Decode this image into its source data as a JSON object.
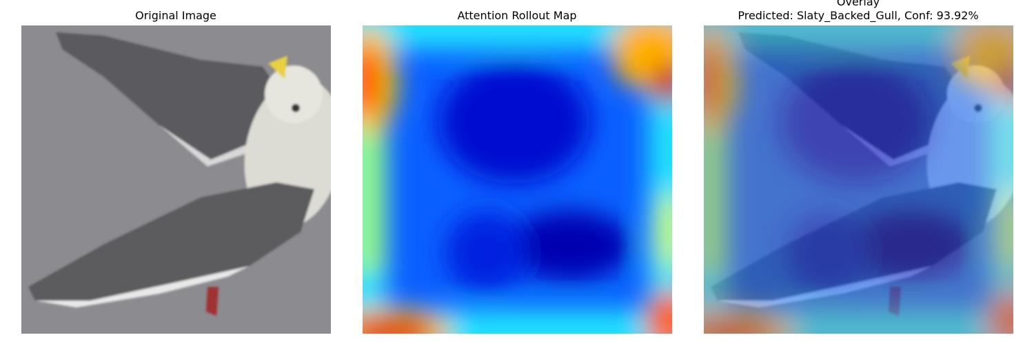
{
  "panels": [
    {
      "title": "Original Image"
    },
    {
      "title": "Attention Rollout Map"
    },
    {
      "title": "Overlay",
      "subtitle": "Predicted: Slaty_Backed_Gull, Conf: 93.92%"
    }
  ]
}
